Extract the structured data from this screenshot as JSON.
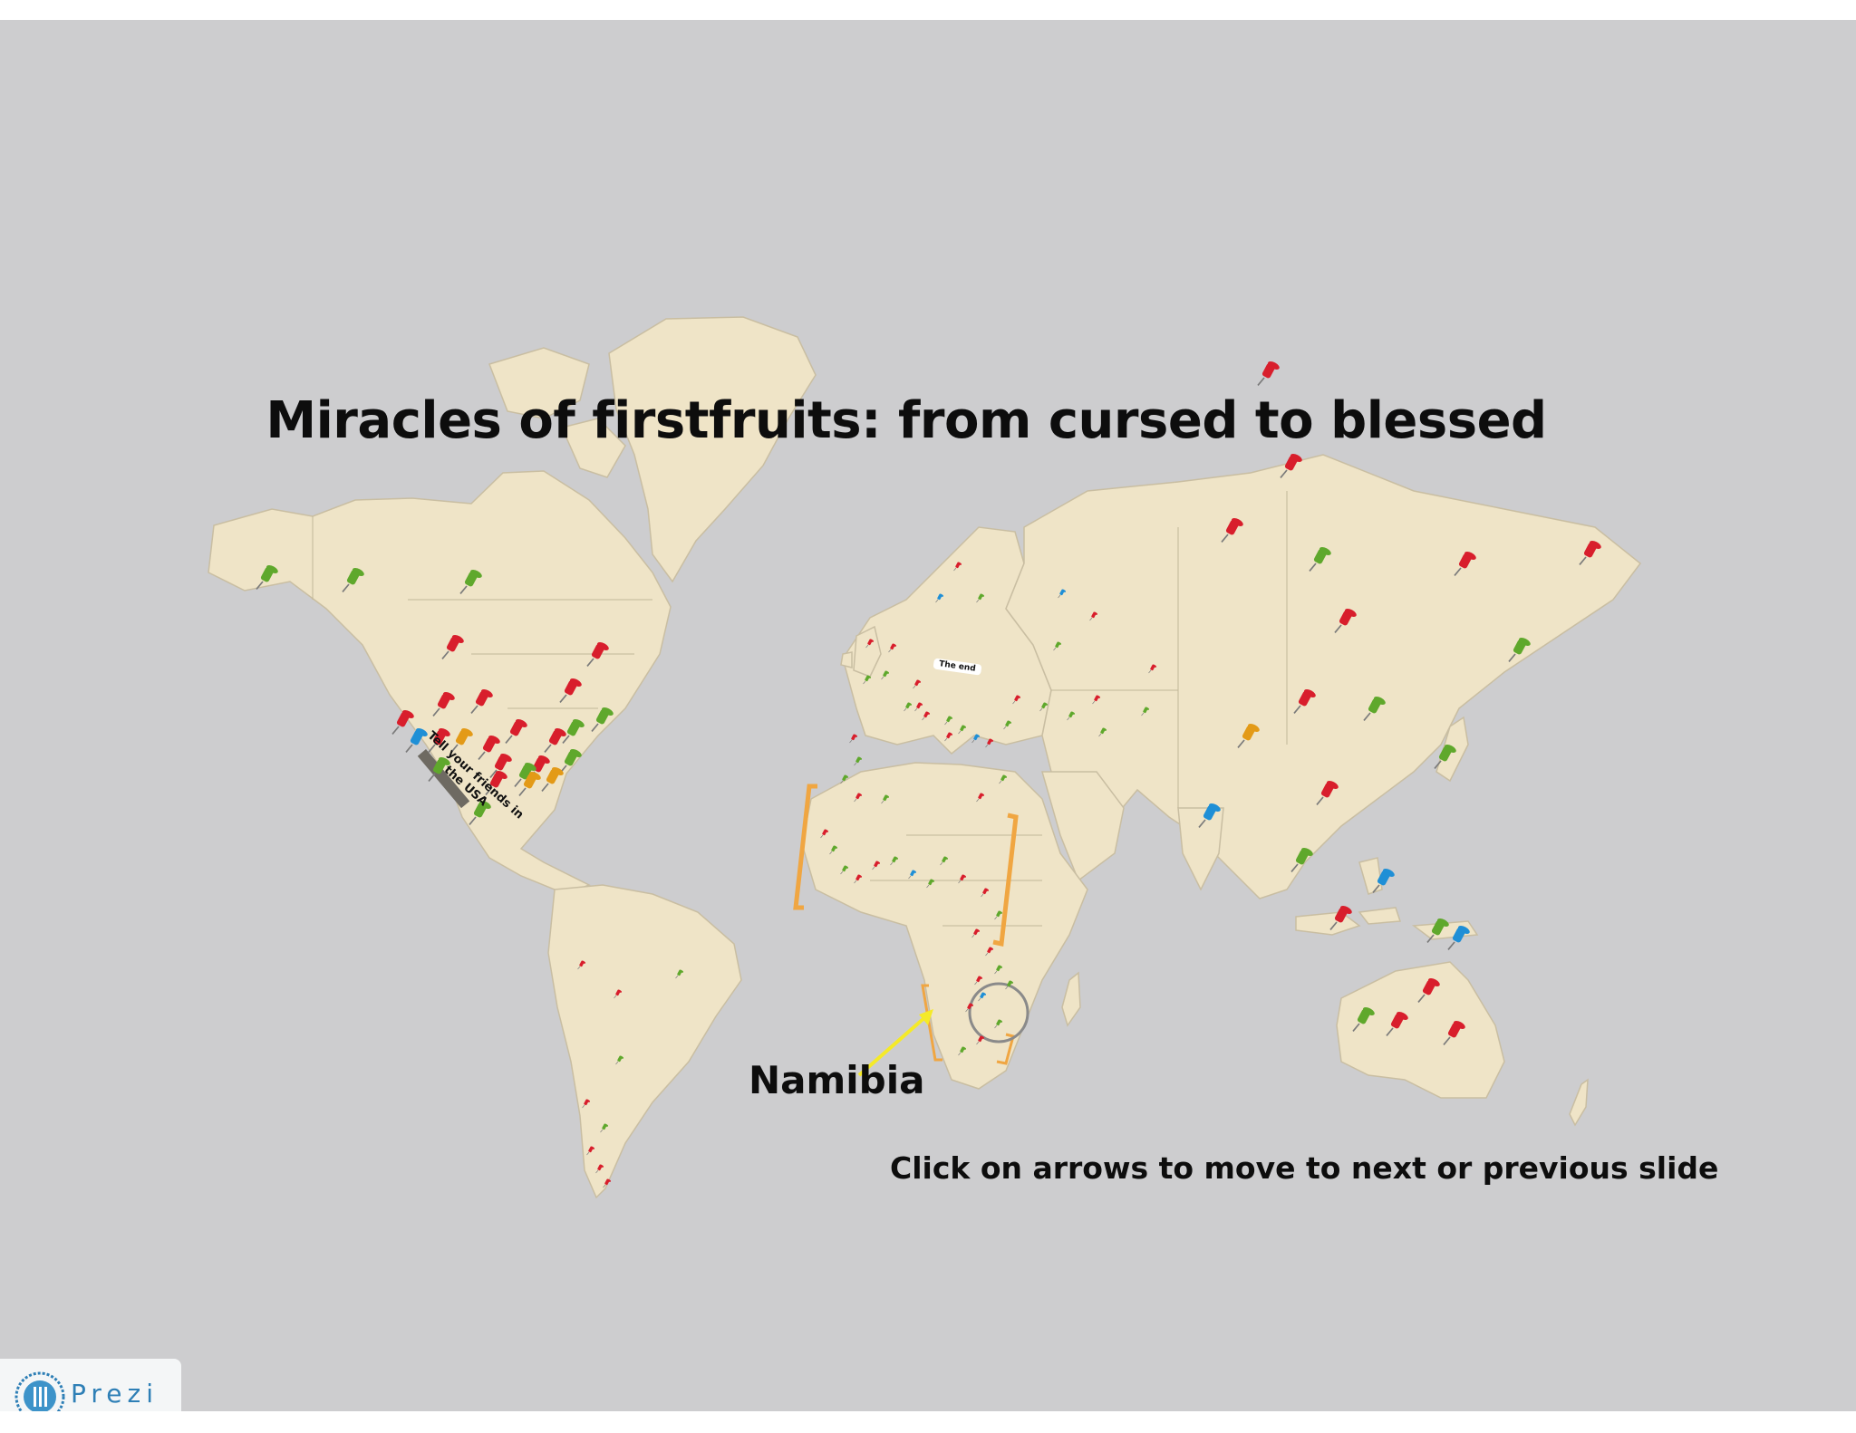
{
  "slide": {
    "title": "Miracles of firstfruits: from cursed to blessed",
    "map_label": "Namibia",
    "instructions": "Click on arrows to move to next or previous slide",
    "usa_note": "Tell your friends in the USA",
    "end_note": "The end"
  },
  "branding": {
    "logo_text": "Prezi",
    "logo_icon": "prezi-logo-icon"
  },
  "colors": {
    "background": "#cdcdcf",
    "land": "#efe4c7",
    "pin_red": "#d81e2c",
    "pin_green": "#5fa82c",
    "pin_blue": "#1f8fd6",
    "pin_orange": "#e39a17",
    "bracket": "#f0a642",
    "arrow": "#f5ea28"
  },
  "pin_colors": [
    "red",
    "green",
    "blue",
    "orange"
  ]
}
